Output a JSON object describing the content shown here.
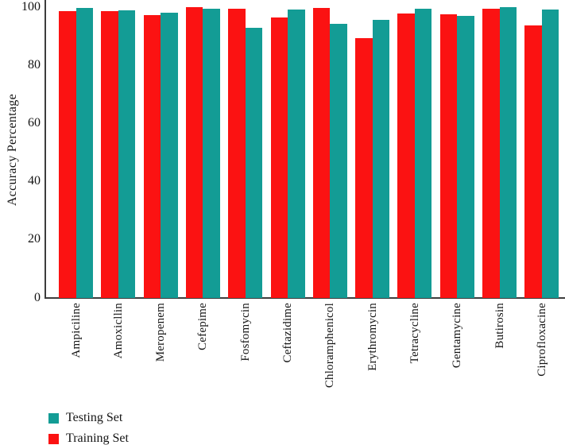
{
  "chart_data": {
    "type": "bar",
    "title": "",
    "xlabel": "",
    "ylabel": "Accuracy Percentage",
    "ylim": [
      0,
      100
    ],
    "yticks": [
      0,
      20,
      40,
      60,
      80,
      100
    ],
    "grid": false,
    "legend_position": "bottom-left",
    "categories": [
      "Ampiciline",
      "Amoxicllin",
      "Meropenem",
      "Cefepime",
      "Fosfomycin",
      "Ceftazidime",
      "Chloramphenicol",
      "Erythromycin",
      "Tetracycline",
      "Gentamycine",
      "Butirosin",
      "Ciprofloxacine"
    ],
    "series": [
      {
        "name": "Training Set",
        "color": "#fb1212",
        "values": [
          98.7,
          98.7,
          97.4,
          99.9,
          99.4,
          96.5,
          99.8,
          89.4,
          97.8,
          97.6,
          99.5,
          93.8
        ]
      },
      {
        "name": "Testing Set",
        "color": "#139c95",
        "values": [
          99.6,
          99.0,
          98.1,
          99.4,
          92.9,
          99.3,
          94.2,
          95.5,
          99.4,
          97.1,
          100.0,
          99.2
        ]
      }
    ]
  },
  "legend": {
    "items": [
      {
        "label": "Testing Set",
        "color": "#139c95"
      },
      {
        "label": "Training Set",
        "color": "#fb1212"
      }
    ]
  },
  "axis": {
    "line_color": "#3d3d3d",
    "text_color": "#141414"
  }
}
